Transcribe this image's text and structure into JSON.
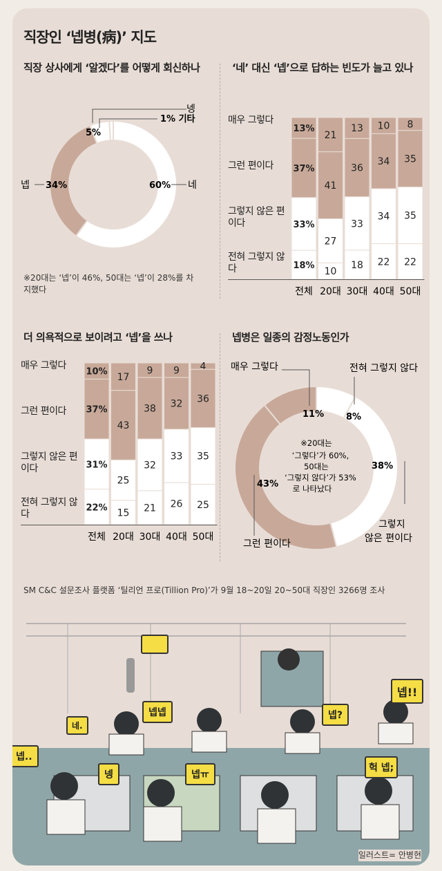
{
  "title": "직장인 ‘넵병(病)’ 지도",
  "chart1": {
    "subtitle": "직장 상사에게 ‘알겠다’를 어떻게 회신하나",
    "labels": {
      "neng": "넹",
      "etc": "1% 기타",
      "ne": "네",
      "nep": "넵"
    },
    "note": "※20대는 ‘넵’이 46%, 50대는 ‘넵’이 28%를 차지했다"
  },
  "chart2": {
    "subtitle": "‘네’ 대신 ‘넵’으로 답하는 빈도가 늘고 있나",
    "row_labels": [
      "매우 그렇다",
      "그런 편이다",
      "그렇지 않은 편이다",
      "전혀 그렇지 않다"
    ]
  },
  "chart3": {
    "subtitle": "더 의욕적으로 보이려고 ‘넵’을 쓰나",
    "row_labels": [
      "매우 그렇다",
      "그런 편이다",
      "그렇지 않은 편이다",
      "전혀 그렇지 않다"
    ]
  },
  "chart4": {
    "subtitle": "넵병은 일종의 감정노동인가",
    "labels": [
      "매우 그렇다",
      "전혀 그렇지 않다",
      "그렇지 않은 편이다",
      "그런 편이다"
    ],
    "note": [
      "※20대는",
      "‘그렇다’가 60%,",
      "50대는",
      "‘그렇지 않다’가 53%",
      "로 나타났다"
    ]
  },
  "source": "SM C&C 설문조사 플랫폼 ‘틸리언 프로(Tillion Pro)’가 9월 18~20일 20~50대 직장인 3266명 조사",
  "illustration": {
    "bubbles": [
      "넵넵",
      "넵!!",
      "네.",
      "넵?",
      "넵..",
      "넹",
      "넵ㅠ",
      "헉 넵;"
    ],
    "credit": "일러스트= 안병현"
  },
  "colors": {
    "brown": "#c8a999",
    "white": "#ffffff",
    "bg": "#e8ddd6",
    "yellow": "#f5dd45"
  },
  "chart_data": [
    {
      "type": "pie",
      "title": "직장 상사에게 ‘알겠다’를 어떻게 회신하나",
      "slices": [
        {
          "label": "네",
          "value": 60,
          "display": "60%"
        },
        {
          "label": "넵",
          "value": 34,
          "display": "34%"
        },
        {
          "label": "넹",
          "value": 5,
          "display": "5%"
        },
        {
          "label": "기타",
          "value": 1,
          "display": "1% 기타"
        }
      ]
    },
    {
      "type": "bar",
      "stacked": true,
      "title": "‘네’ 대신 ‘넵’으로 답하는 빈도가 늘고 있나",
      "categories": [
        "전체",
        "20대",
        "30대",
        "40대",
        "50대"
      ],
      "series": [
        {
          "name": "매우 그렇다",
          "values": [
            13,
            21,
            13,
            10,
            8
          ],
          "labels": [
            "13%",
            "21",
            "13",
            "10",
            "8"
          ]
        },
        {
          "name": "그런 편이다",
          "values": [
            37,
            41,
            36,
            34,
            35
          ],
          "labels": [
            "37%",
            "41",
            "36",
            "34",
            "35"
          ]
        },
        {
          "name": "그렇지 않은 편이다",
          "values": [
            33,
            27,
            33,
            34,
            35
          ],
          "labels": [
            "33%",
            "27",
            "33",
            "34",
            "35"
          ]
        },
        {
          "name": "전혀 그렇지 않다",
          "values": [
            18,
            10,
            18,
            22,
            22
          ],
          "labels": [
            "18%",
            "10",
            "18",
            "22",
            "22"
          ]
        }
      ]
    },
    {
      "type": "bar",
      "stacked": true,
      "title": "더 의욕적으로 보이려고 ‘넵’을 쓰나",
      "categories": [
        "전체",
        "20대",
        "30대",
        "40대",
        "50대"
      ],
      "series": [
        {
          "name": "매우 그렇다",
          "values": [
            10,
            17,
            9,
            9,
            4
          ],
          "labels": [
            "10%",
            "17",
            "9",
            "9",
            "4"
          ]
        },
        {
          "name": "그런 편이다",
          "values": [
            37,
            43,
            38,
            32,
            36
          ],
          "labels": [
            "37%",
            "43",
            "38",
            "32",
            "36"
          ]
        },
        {
          "name": "그렇지 않은 편이다",
          "values": [
            31,
            25,
            32,
            33,
            35
          ],
          "labels": [
            "31%",
            "25",
            "32",
            "33",
            "35"
          ]
        },
        {
          "name": "전혀 그렇지 않다",
          "values": [
            22,
            15,
            21,
            26,
            25
          ],
          "labels": [
            "22%",
            "15",
            "21",
            "26",
            "25"
          ]
        }
      ]
    },
    {
      "type": "pie",
      "title": "넵병은 일종의 감정노동인가",
      "slices": [
        {
          "label": "매우 그렇다",
          "value": 11,
          "display": "11%"
        },
        {
          "label": "전혀 그렇지 않다",
          "value": 8,
          "display": "8%"
        },
        {
          "label": "그렇지 않은 편이다",
          "value": 38,
          "display": "38%"
        },
        {
          "label": "그런 편이다",
          "value": 43,
          "display": "43%"
        }
      ]
    }
  ]
}
